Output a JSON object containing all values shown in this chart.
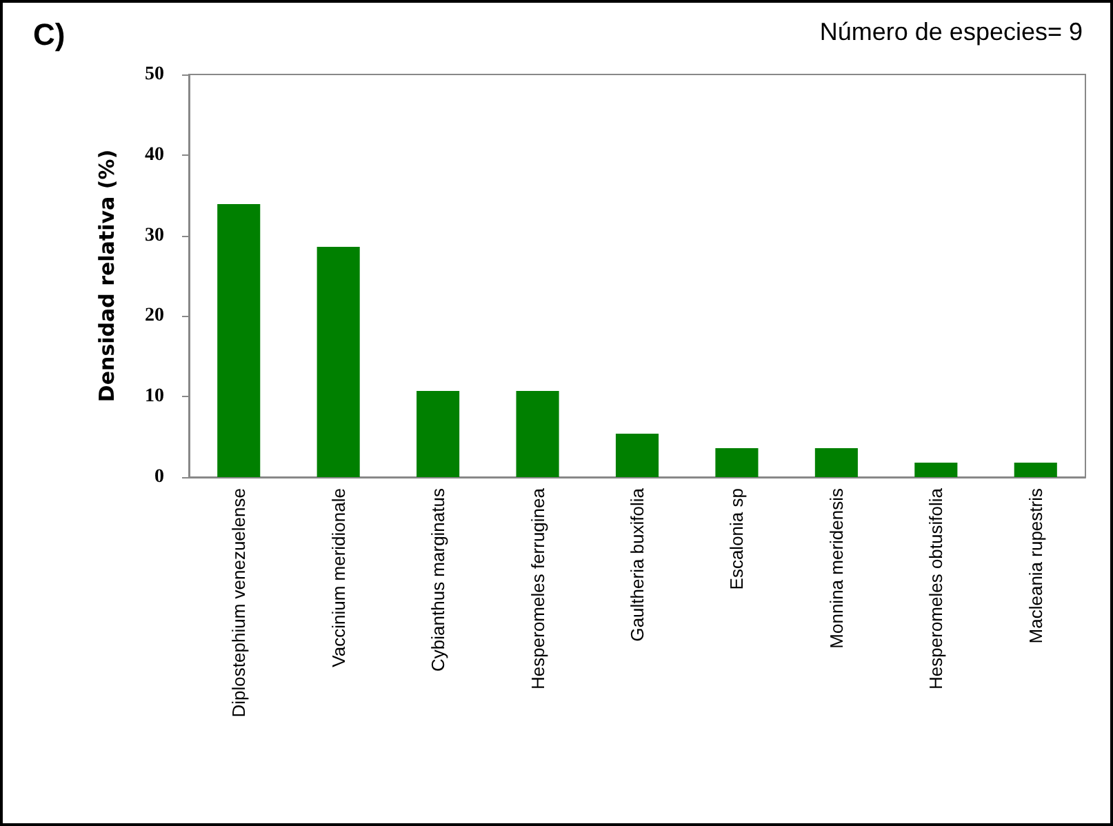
{
  "chart_data": {
    "type": "bar",
    "ylabel": "Densidad relativa (%)",
    "annotations": [
      "C)",
      "Número de especies= 9"
    ],
    "categories": [
      "Diplostephium venezuelense",
      "Vaccinium meridionale",
      "Cybianthus marginatus",
      "Hesperomeles ferruginea",
      "Gaultheria buxifolia",
      "Escalonia sp",
      "Monnina meridensis",
      "Hesperomeles obtusifolia",
      "Macleania rupestris"
    ],
    "values": [
      33.9,
      28.6,
      10.7,
      10.7,
      5.4,
      3.6,
      3.6,
      1.8,
      1.8
    ],
    "color": "#008000",
    "ylim": [
      0,
      50
    ],
    "yticks": [
      0,
      10,
      20,
      30,
      40,
      50
    ],
    "grid": false
  }
}
